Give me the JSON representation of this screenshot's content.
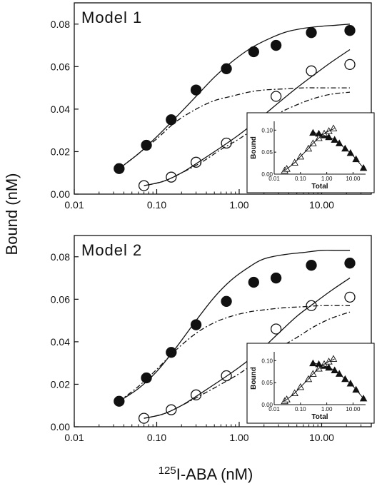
{
  "figure": {
    "y_axis_title": "Bound  (nM)",
    "x_axis_title_sup": "125",
    "x_axis_title_main": "I-ABA  (nM)"
  },
  "chart_data": [
    {
      "type": "scatter",
      "title": "Model 1",
      "xlabel": "125I-ABA (nM)",
      "ylabel": "Bound (nM)",
      "xscale": "log",
      "xlim": [
        0.01,
        40
      ],
      "ylim": [
        0,
        0.09
      ],
      "x_ticks": [
        "0.01",
        "0.10",
        "1.00",
        "10.00"
      ],
      "y_ticks": [
        "0.00",
        "0.02",
        "0.04",
        "0.06",
        "0.08"
      ],
      "series": [
        {
          "marker": "filled-circle",
          "x": [
            0.035,
            0.075,
            0.15,
            0.3,
            0.7,
            1.5,
            2.8,
            7.5,
            22
          ],
          "y": [
            0.012,
            0.023,
            0.035,
            0.049,
            0.059,
            0.067,
            0.07,
            0.076,
            0.077
          ]
        },
        {
          "marker": "open-circle",
          "x": [
            0.07,
            0.15,
            0.3,
            0.7,
            1.5,
            2.8,
            7.5,
            22
          ],
          "y": [
            0.004,
            0.008,
            0.015,
            0.024,
            0.035,
            0.046,
            0.058,
            0.061
          ]
        },
        {
          "style": "solid-fit",
          "x": [
            0.035,
            0.06,
            0.1,
            0.17,
            0.3,
            0.5,
            0.8,
            1.3,
            2,
            3.5,
            6,
            10,
            15,
            22
          ],
          "y": [
            0.012,
            0.019,
            0.027,
            0.036,
            0.046,
            0.055,
            0.062,
            0.068,
            0.072,
            0.076,
            0.078,
            0.079,
            0.0795,
            0.08
          ]
        },
        {
          "style": "dashdot-fit",
          "x": [
            0.035,
            0.06,
            0.1,
            0.17,
            0.3,
            0.5,
            0.8,
            1.3,
            2,
            3.5,
            6,
            10,
            22
          ],
          "y": [
            0.012,
            0.019,
            0.026,
            0.034,
            0.04,
            0.044,
            0.046,
            0.048,
            0.049,
            0.0495,
            0.05,
            0.05,
            0.05
          ]
        },
        {
          "style": "solid-fit",
          "x": [
            0.07,
            0.12,
            0.2,
            0.35,
            0.6,
            1,
            1.7,
            3,
            5,
            8,
            13,
            22
          ],
          "y": [
            0.004,
            0.006,
            0.01,
            0.016,
            0.022,
            0.028,
            0.035,
            0.043,
            0.05,
            0.056,
            0.062,
            0.068
          ]
        },
        {
          "style": "dashdot-fit",
          "x": [
            0.07,
            0.12,
            0.2,
            0.35,
            0.6,
            1,
            1.7,
            3,
            5,
            8,
            13,
            22
          ],
          "y": [
            0.004,
            0.006,
            0.01,
            0.015,
            0.021,
            0.026,
            0.032,
            0.038,
            0.042,
            0.045,
            0.047,
            0.048
          ]
        }
      ],
      "inset": {
        "type": "scatter",
        "xlabel": "Total",
        "ylabel": "Bound",
        "xscale": "log",
        "xlim": [
          0.01,
          30
        ],
        "ylim": [
          0,
          0.12
        ],
        "x_ticks": [
          "0.01",
          "0.10",
          "1.00",
          "10.00"
        ],
        "y_ticks": [
          "0.00",
          "0.05",
          "0.10"
        ],
        "series": [
          {
            "marker": "filled-triangle",
            "x": [
              0.3,
              0.5,
              0.8,
              1.2,
              2,
              3,
              5,
              8,
              13,
              25
            ],
            "y": [
              0.094,
              0.092,
              0.088,
              0.084,
              0.078,
              0.07,
              0.058,
              0.048,
              0.034,
              0.014
            ]
          },
          {
            "marker": "open-triangle",
            "x": [
              0.025,
              0.03,
              0.06,
              0.1,
              0.2,
              0.3,
              0.5,
              0.8,
              1.2,
              1.8
            ],
            "y": [
              0.008,
              0.012,
              0.026,
              0.04,
              0.058,
              0.07,
              0.082,
              0.092,
              0.098,
              0.104
            ]
          },
          {
            "style": "solid-fit",
            "x": [
              0.025,
              0.06,
              0.1,
              0.2,
              0.3,
              0.5,
              0.8,
              1.2,
              2
            ],
            "y": [
              0.008,
              0.026,
              0.04,
              0.058,
              0.07,
              0.082,
              0.092,
              0.098,
              0.104
            ]
          },
          {
            "style": "solid-fit",
            "x": [
              0.3,
              0.5,
              0.8,
              1.2,
              2,
              3,
              5,
              8,
              13,
              25
            ],
            "y": [
              0.094,
              0.092,
              0.088,
              0.084,
              0.078,
              0.07,
              0.058,
              0.048,
              0.034,
              0.014
            ]
          }
        ]
      }
    },
    {
      "type": "scatter",
      "title": "Model 2",
      "xlabel": "125I-ABA (nM)",
      "ylabel": "Bound (nM)",
      "xscale": "log",
      "xlim": [
        0.01,
        40
      ],
      "ylim": [
        0,
        0.09
      ],
      "x_ticks": [
        "0.01",
        "0.10",
        "1.00",
        "10.00"
      ],
      "y_ticks": [
        "0.00",
        "0.02",
        "0.04",
        "0.06",
        "0.08"
      ],
      "series": [
        {
          "marker": "filled-circle",
          "x": [
            0.035,
            0.075,
            0.15,
            0.3,
            0.7,
            1.5,
            2.8,
            7.5,
            22
          ],
          "y": [
            0.012,
            0.023,
            0.035,
            0.048,
            0.059,
            0.068,
            0.07,
            0.076,
            0.077
          ]
        },
        {
          "marker": "open-circle",
          "x": [
            0.07,
            0.15,
            0.3,
            0.7,
            1.5,
            2.8,
            7.5,
            22
          ],
          "y": [
            0.004,
            0.008,
            0.015,
            0.024,
            0.035,
            0.046,
            0.057,
            0.061
          ]
        },
        {
          "style": "solid-fit",
          "x": [
            0.035,
            0.06,
            0.1,
            0.17,
            0.3,
            0.5,
            0.8,
            1.3,
            2,
            3.5,
            6,
            10,
            15,
            22
          ],
          "y": [
            0.012,
            0.018,
            0.026,
            0.037,
            0.05,
            0.061,
            0.069,
            0.075,
            0.079,
            0.081,
            0.082,
            0.083,
            0.083,
            0.083
          ]
        },
        {
          "style": "dashdot-fit",
          "x": [
            0.035,
            0.06,
            0.1,
            0.17,
            0.3,
            0.5,
            0.8,
            1.3,
            2,
            3.5,
            6,
            10,
            22
          ],
          "y": [
            0.012,
            0.019,
            0.027,
            0.036,
            0.044,
            0.049,
            0.052,
            0.054,
            0.055,
            0.056,
            0.0565,
            0.057,
            0.057
          ]
        },
        {
          "style": "solid-fit",
          "x": [
            0.07,
            0.12,
            0.2,
            0.35,
            0.6,
            1,
            1.7,
            3,
            5,
            8,
            13,
            22
          ],
          "y": [
            0.004,
            0.006,
            0.01,
            0.016,
            0.022,
            0.028,
            0.035,
            0.044,
            0.052,
            0.058,
            0.064,
            0.07
          ]
        },
        {
          "style": "dashdot-fit",
          "x": [
            0.07,
            0.12,
            0.2,
            0.35,
            0.6,
            1,
            1.7,
            3,
            5,
            8,
            13,
            22
          ],
          "y": [
            0.004,
            0.006,
            0.01,
            0.015,
            0.02,
            0.025,
            0.031,
            0.037,
            0.042,
            0.047,
            0.051,
            0.054
          ]
        }
      ],
      "inset": {
        "type": "scatter",
        "xlabel": "Total",
        "ylabel": "Bound",
        "xscale": "log",
        "xlim": [
          0.01,
          30
        ],
        "ylim": [
          0,
          0.12
        ],
        "x_ticks": [
          "0.01",
          "0.10",
          "1.00",
          "10.00"
        ],
        "y_ticks": [
          "0.00",
          "0.05",
          "0.10"
        ],
        "series": [
          {
            "marker": "filled-triangle",
            "x": [
              0.3,
              0.5,
              0.8,
              1.2,
              2,
              3,
              5,
              8,
              13,
              25
            ],
            "y": [
              0.094,
              0.092,
              0.088,
              0.084,
              0.078,
              0.07,
              0.058,
              0.048,
              0.034,
              0.014
            ]
          },
          {
            "marker": "open-triangle",
            "x": [
              0.025,
              0.03,
              0.06,
              0.1,
              0.2,
              0.3,
              0.5,
              0.8,
              1.2,
              1.8
            ],
            "y": [
              0.008,
              0.012,
              0.026,
              0.04,
              0.058,
              0.07,
              0.082,
              0.092,
              0.098,
              0.104
            ]
          },
          {
            "style": "solid-fit",
            "x": [
              0.025,
              0.06,
              0.1,
              0.2,
              0.3,
              0.5,
              0.8,
              1.2,
              2
            ],
            "y": [
              0.008,
              0.026,
              0.04,
              0.058,
              0.07,
              0.082,
              0.092,
              0.098,
              0.104
            ]
          },
          {
            "style": "solid-fit",
            "x": [
              0.3,
              0.5,
              0.8,
              1.2,
              2,
              3,
              5,
              8,
              13,
              25
            ],
            "y": [
              0.094,
              0.092,
              0.088,
              0.084,
              0.078,
              0.07,
              0.058,
              0.048,
              0.034,
              0.014
            ]
          }
        ]
      }
    }
  ]
}
